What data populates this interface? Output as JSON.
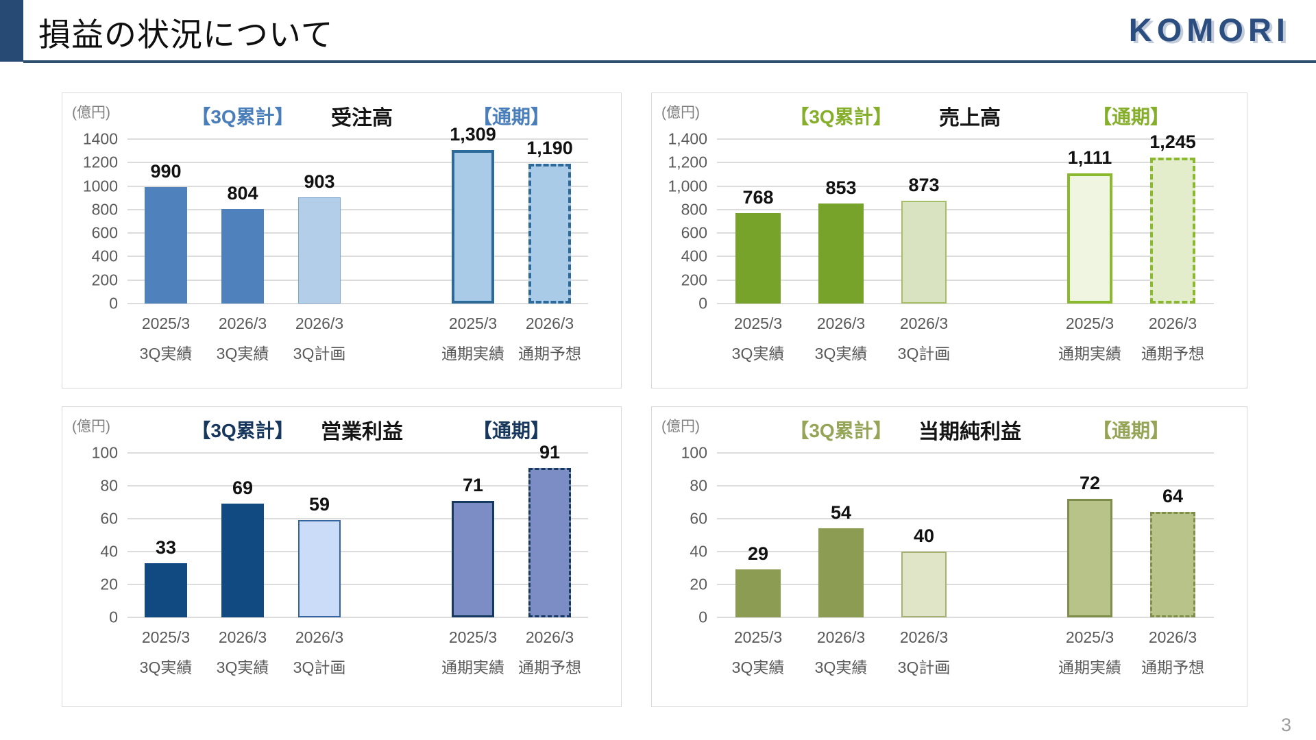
{
  "slide": {
    "title": "損益の状況について",
    "logo_text": "KOMORI",
    "page_number": "3"
  },
  "chart_data": [
    {
      "id": "orders",
      "type": "bar",
      "unit": "(億円)",
      "group_left_label": "【3Q累計】",
      "title": "受注高",
      "group_right_label": "【通期】",
      "accent_color": "#4a7ebb",
      "ylim": [
        0,
        1400
      ],
      "ytick_labels": [
        "1400",
        "1200",
        "1000",
        "800",
        "600",
        "400",
        "200",
        "0"
      ],
      "categories": [
        [
          "2025/3",
          "3Q実績"
        ],
        [
          "2026/3",
          "3Q実績"
        ],
        [
          "2026/3",
          "3Q計画"
        ],
        [
          "2025/3",
          "通期実績"
        ],
        [
          "2026/3",
          "通期予想"
        ]
      ],
      "values": [
        990,
        804,
        903,
        1309,
        1190
      ],
      "value_labels": [
        "990",
        "804",
        "903",
        "1,309",
        "1,190"
      ],
      "bar_styles": [
        {
          "fill": "#4f81bd",
          "stroke": null,
          "sw": 0,
          "dash": false
        },
        {
          "fill": "#4f81bd",
          "stroke": null,
          "sw": 0,
          "dash": false
        },
        {
          "fill": "#b3cee8",
          "stroke": "#7da7d0",
          "sw": 1.5,
          "dash": false
        },
        {
          "fill": "#a9cbe7",
          "stroke": "#2c6b99",
          "sw": 4,
          "dash": false
        },
        {
          "fill": "#a9cbe7",
          "stroke": "#2c6b99",
          "sw": 4,
          "dash": true
        }
      ]
    },
    {
      "id": "sales",
      "type": "bar",
      "unit": "(億円)",
      "group_left_label": "【3Q累計】",
      "title": "売上高",
      "group_right_label": "【通期】",
      "accent_color": "#85ae2b",
      "ylim": [
        0,
        1400
      ],
      "ytick_labels": [
        "1,400",
        "1,200",
        "1,000",
        "800",
        "600",
        "400",
        "200",
        "0"
      ],
      "categories": [
        [
          "2025/3",
          "3Q実績"
        ],
        [
          "2026/3",
          "3Q実績"
        ],
        [
          "2026/3",
          "3Q計画"
        ],
        [
          "2025/3",
          "通期実績"
        ],
        [
          "2026/3",
          "通期予想"
        ]
      ],
      "values": [
        768,
        853,
        873,
        1111,
        1245
      ],
      "value_labels": [
        "768",
        "853",
        "873",
        "1,111",
        "1,245"
      ],
      "bar_styles": [
        {
          "fill": "#78a32a",
          "stroke": null,
          "sw": 0,
          "dash": false
        },
        {
          "fill": "#78a32a",
          "stroke": null,
          "sw": 0,
          "dash": false
        },
        {
          "fill": "#d9e3c1",
          "stroke": "#a6bf67",
          "sw": 2,
          "dash": false
        },
        {
          "fill": "#f0f5e1",
          "stroke": "#8ab92f",
          "sw": 4,
          "dash": false
        },
        {
          "fill": "#e3edcb",
          "stroke": "#8ab92f",
          "sw": 4,
          "dash": true
        }
      ]
    },
    {
      "id": "operating-profit",
      "type": "bar",
      "unit": "(億円)",
      "group_left_label": "【3Q累計】",
      "title": "営業利益",
      "group_right_label": "【通期】",
      "accent_color": "#17375d",
      "ylim": [
        0,
        100
      ],
      "ytick_labels": [
        "100",
        "80",
        "60",
        "40",
        "20",
        "0"
      ],
      "categories": [
        [
          "2025/3",
          "3Q実績"
        ],
        [
          "2026/3",
          "3Q実績"
        ],
        [
          "2026/3",
          "3Q計画"
        ],
        [
          "2025/3",
          "通期実績"
        ],
        [
          "2026/3",
          "通期予想"
        ]
      ],
      "values": [
        33,
        69,
        59,
        71,
        91
      ],
      "value_labels": [
        "33",
        "69",
        "59",
        "71",
        "91"
      ],
      "bar_styles": [
        {
          "fill": "#114a80",
          "stroke": null,
          "sw": 0,
          "dash": false
        },
        {
          "fill": "#114a80",
          "stroke": null,
          "sw": 0,
          "dash": false
        },
        {
          "fill": "#cbdcf9",
          "stroke": "#3565a0",
          "sw": 2,
          "dash": false
        },
        {
          "fill": "#7c8dc5",
          "stroke": "#16395f",
          "sw": 3.5,
          "dash": false
        },
        {
          "fill": "#7c8dc5",
          "stroke": "#16395f",
          "sw": 3.5,
          "dash": true
        }
      ]
    },
    {
      "id": "net-income",
      "type": "bar",
      "unit": "(億円)",
      "group_left_label": "【3Q累計】",
      "title": "当期純利益",
      "group_right_label": "【通期】",
      "accent_color": "#95a456",
      "ylim": [
        0,
        100
      ],
      "ytick_labels": [
        "100",
        "80",
        "60",
        "40",
        "20",
        "0"
      ],
      "categories": [
        [
          "2025/3",
          "3Q実績"
        ],
        [
          "2026/3",
          "3Q実績"
        ],
        [
          "2026/3",
          "3Q計画"
        ],
        [
          "2025/3",
          "通期実績"
        ],
        [
          "2026/3",
          "通期予想"
        ]
      ],
      "values": [
        29,
        54,
        40,
        72,
        64
      ],
      "value_labels": [
        "29",
        "54",
        "40",
        "72",
        "64"
      ],
      "bar_styles": [
        {
          "fill": "#8c9c52",
          "stroke": null,
          "sw": 0,
          "dash": false
        },
        {
          "fill": "#8c9c52",
          "stroke": null,
          "sw": 0,
          "dash": false
        },
        {
          "fill": "#dfe5c6",
          "stroke": "#a5b171",
          "sw": 2,
          "dash": false
        },
        {
          "fill": "#b8c389",
          "stroke": "#7f8e4a",
          "sw": 3,
          "dash": false
        },
        {
          "fill": "#b8c389",
          "stroke": "#7f8e4a",
          "sw": 3,
          "dash": true
        }
      ]
    }
  ]
}
